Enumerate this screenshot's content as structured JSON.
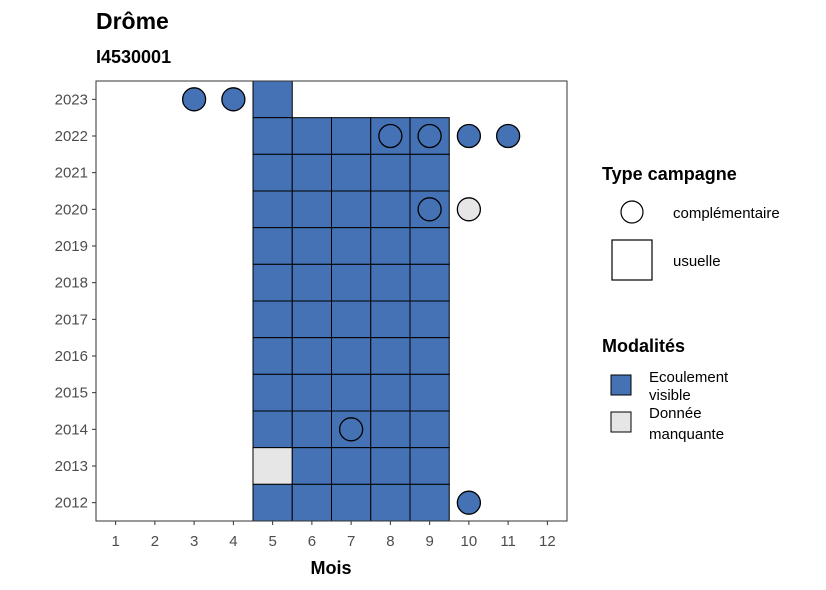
{
  "chart_data": {
    "type": "heatmap",
    "title": "Drôme",
    "subtitle": "I4530001",
    "xlabel": "Mois",
    "ylabel": "",
    "x_ticks": [
      1,
      2,
      3,
      4,
      5,
      6,
      7,
      8,
      9,
      10,
      11,
      12
    ],
    "y_ticks": [
      2023,
      2022,
      2021,
      2020,
      2019,
      2018,
      2017,
      2016,
      2015,
      2014,
      2013,
      2012
    ],
    "xlim": [
      0.5,
      12.5
    ],
    "ylim": [
      2011.5,
      2023.5
    ],
    "grid": false,
    "legend_position": "right",
    "colors": {
      "ecoulement_visible": "#4472b4",
      "donnee_manquante": "#e6e6e6"
    },
    "legend_type": {
      "title": "Type campagne",
      "items": [
        {
          "label": "complémentaire",
          "shape": "circle"
        },
        {
          "label": "usuelle",
          "shape": "square"
        }
      ]
    },
    "legend_modalites": {
      "title": "Modalités",
      "items": [
        {
          "key": "ecoulement_visible",
          "label_lines": [
            "Ecoulement",
            "visible"
          ]
        },
        {
          "key": "donnee_manquante",
          "label_lines": [
            "Donnée",
            "manquante"
          ]
        }
      ]
    },
    "usuelle_observations": [
      {
        "year": 2023,
        "months": [
          5
        ],
        "modalite": "ecoulement_visible"
      },
      {
        "year": 2022,
        "months": [
          5,
          6,
          7,
          8,
          9
        ],
        "modalite": "ecoulement_visible"
      },
      {
        "year": 2021,
        "months": [
          5,
          6,
          7,
          8,
          9
        ],
        "modalite": "ecoulement_visible"
      },
      {
        "year": 2020,
        "months": [
          5,
          6,
          7,
          8,
          9
        ],
        "modalite": "ecoulement_visible"
      },
      {
        "year": 2019,
        "months": [
          5,
          6,
          7,
          8,
          9
        ],
        "modalite": "ecoulement_visible"
      },
      {
        "year": 2018,
        "months": [
          5,
          6,
          7,
          8,
          9
        ],
        "modalite": "ecoulement_visible"
      },
      {
        "year": 2017,
        "months": [
          5,
          6,
          7,
          8,
          9
        ],
        "modalite": "ecoulement_visible"
      },
      {
        "year": 2016,
        "months": [
          5,
          6,
          7,
          8,
          9
        ],
        "modalite": "ecoulement_visible"
      },
      {
        "year": 2015,
        "months": [
          5,
          6,
          7,
          8,
          9
        ],
        "modalite": "ecoulement_visible"
      },
      {
        "year": 2014,
        "months": [
          5,
          6,
          7,
          8,
          9
        ],
        "modalite": "ecoulement_visible"
      },
      {
        "year": 2013,
        "months": [
          5
        ],
        "modalite": "donnee_manquante"
      },
      {
        "year": 2013,
        "months": [
          6,
          7,
          8,
          9
        ],
        "modalite": "ecoulement_visible"
      },
      {
        "year": 2012,
        "months": [
          5,
          6,
          7,
          8,
          9
        ],
        "modalite": "ecoulement_visible"
      }
    ],
    "complementaire_observations": [
      {
        "year": 2023,
        "month": 3,
        "modalite": "ecoulement_visible"
      },
      {
        "year": 2023,
        "month": 4,
        "modalite": "ecoulement_visible"
      },
      {
        "year": 2022,
        "month": 8,
        "modalite": "ecoulement_visible"
      },
      {
        "year": 2022,
        "month": 9,
        "modalite": "ecoulement_visible"
      },
      {
        "year": 2022,
        "month": 10,
        "modalite": "ecoulement_visible"
      },
      {
        "year": 2022,
        "month": 11,
        "modalite": "ecoulement_visible"
      },
      {
        "year": 2020,
        "month": 9,
        "modalite": "ecoulement_visible"
      },
      {
        "year": 2020,
        "month": 10,
        "modalite": "donnee_manquante"
      },
      {
        "year": 2014,
        "month": 7,
        "modalite": "ecoulement_visible"
      },
      {
        "year": 2012,
        "month": 10,
        "modalite": "ecoulement_visible"
      }
    ]
  }
}
